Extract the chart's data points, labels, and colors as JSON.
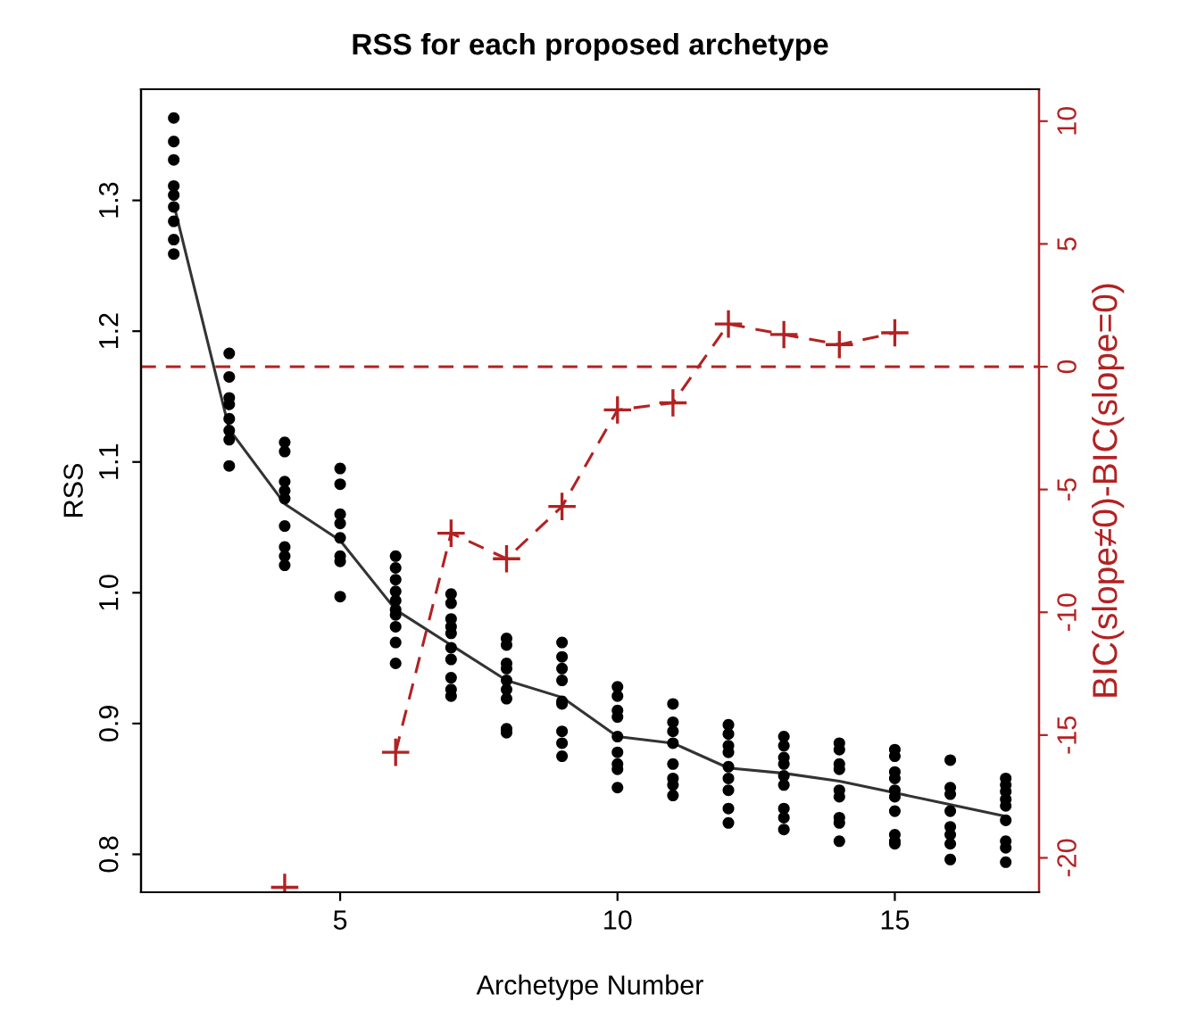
{
  "chart_data": {
    "type": "scatter",
    "title": "RSS for each proposed archetype",
    "xlabel": "Archetype Number",
    "ylabel": "RSS",
    "y2label": "BIC(slope≠0)-BIC(slope=0)",
    "xlim": [
      1.41,
      17.6
    ],
    "xticks": [
      5,
      10,
      15
    ],
    "ylim": [
      0.771,
      1.385
    ],
    "yticks": [
      0.8,
      0.9,
      {
        "value": 1.0,
        "label": "1.0"
      },
      1.1,
      1.2,
      1.3
    ],
    "y2lim": [
      -21.4,
      11.3
    ],
    "y2ticks": [
      -20,
      -15,
      -10,
      -5,
      0,
      5,
      10
    ],
    "grid": false,
    "legend": false,
    "series": [
      {
        "color": "#000000",
        "marker": "circle",
        "x": [
          2,
          2,
          2,
          2,
          2,
          2,
          2,
          2,
          2,
          3,
          3,
          3,
          3,
          3,
          3,
          3,
          3,
          4,
          4,
          4,
          4,
          4,
          4,
          4,
          4,
          4,
          5,
          5,
          5,
          5,
          5,
          5,
          5,
          5,
          6,
          6,
          6,
          6,
          6,
          6,
          6,
          6,
          6,
          6,
          7,
          7,
          7,
          7,
          7,
          7,
          7,
          7,
          7,
          7,
          8,
          8,
          8,
          8,
          8,
          8,
          8,
          8,
          8,
          9,
          9,
          9,
          9,
          9,
          9,
          9,
          9,
          9,
          10,
          10,
          10,
          10,
          10,
          10,
          10,
          10,
          10,
          11,
          11,
          11,
          11,
          11,
          11,
          11,
          11,
          12,
          12,
          12,
          12,
          12,
          12,
          12,
          12,
          12,
          13,
          13,
          13,
          13,
          13,
          13,
          13,
          13,
          13,
          14,
          14,
          14,
          14,
          14,
          14,
          14,
          14,
          14,
          15,
          15,
          15,
          15,
          15,
          15,
          15,
          15,
          15,
          15,
          16,
          16,
          16,
          16,
          16,
          16,
          16,
          16,
          17,
          17,
          17,
          17,
          17,
          17,
          17,
          17,
          17
        ],
        "values": [
          1.363,
          1.345,
          1.331,
          1.311,
          1.304,
          1.295,
          1.284,
          1.27,
          1.259,
          1.183,
          1.165,
          1.149,
          1.144,
          1.133,
          1.124,
          1.117,
          1.097,
          1.115,
          1.108,
          1.085,
          1.078,
          1.072,
          1.051,
          1.035,
          1.028,
          1.021,
          1.095,
          1.083,
          1.06,
          1.053,
          1.042,
          1.028,
          1.024,
          0.997,
          1.028,
          1.019,
          1.01,
          1.001,
          0.994,
          0.987,
          0.983,
          0.974,
          0.962,
          0.946,
          0.999,
          0.992,
          0.98,
          0.974,
          0.969,
          0.958,
          0.949,
          0.935,
          0.926,
          0.921,
          0.965,
          0.96,
          0.946,
          0.942,
          0.933,
          0.926,
          0.919,
          0.896,
          0.893,
          0.962,
          0.951,
          0.942,
          0.933,
          0.917,
          0.915,
          0.894,
          0.885,
          0.875,
          0.928,
          0.921,
          0.91,
          0.905,
          0.89,
          0.878,
          0.869,
          0.865,
          0.851,
          0.915,
          0.901,
          0.894,
          0.885,
          0.869,
          0.858,
          0.853,
          0.845,
          0.899,
          0.892,
          0.883,
          0.878,
          0.867,
          0.858,
          0.849,
          0.835,
          0.824,
          0.89,
          0.883,
          0.874,
          0.869,
          0.86,
          0.853,
          0.835,
          0.828,
          0.819,
          0.885,
          0.88,
          0.869,
          0.865,
          0.849,
          0.844,
          0.828,
          0.824,
          0.81,
          0.88,
          0.875,
          0.863,
          0.858,
          0.849,
          0.844,
          0.833,
          0.815,
          0.81,
          0.808,
          0.872,
          0.851,
          0.846,
          0.833,
          0.821,
          0.815,
          0.808,
          0.796,
          0.858,
          0.853,
          0.848,
          0.842,
          0.837,
          0.826,
          0.81,
          0.805,
          0.794
        ]
      },
      {
        "type": "line",
        "color": "#333333",
        "marker": "none",
        "line_style": "solid",
        "x": [
          2,
          3,
          4,
          5,
          6,
          7,
          8,
          9,
          10,
          11,
          12,
          13,
          14,
          15,
          16,
          17
        ],
        "values": [
          1.297,
          1.125,
          1.068,
          1.04,
          0.987,
          0.96,
          0.933,
          0.92,
          0.89,
          0.885,
          0.866,
          0.862,
          0.856,
          0.847,
          0.838,
          0.829
        ]
      },
      {
        "type": "line",
        "color": "#b22222",
        "marker": "cross",
        "line_style": "dashed",
        "axis": "y2",
        "x": [
          4,
          5,
          6,
          7,
          8,
          9,
          10,
          11,
          12,
          13,
          14,
          15
        ],
        "values": [
          -21.2,
          null,
          -15.7,
          -6.78,
          -7.82,
          -5.69,
          -1.76,
          -1.47,
          1.74,
          1.31,
          0.9,
          1.38
        ]
      }
    ],
    "ref_lines": [
      {
        "axis": "y2",
        "value": 0,
        "color": "#b22222",
        "line_style": "dashed"
      }
    ]
  }
}
